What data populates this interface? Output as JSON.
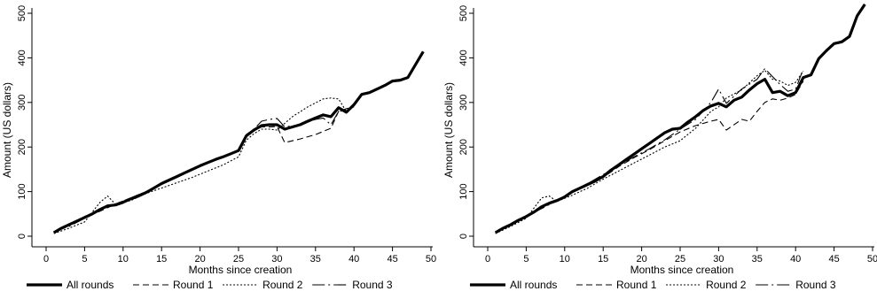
{
  "chart_data": [
    {
      "type": "line",
      "title": "",
      "xlabel": "Months since creation",
      "ylabel": "Amount (US dollars)",
      "xlim": [
        0,
        50
      ],
      "ylim": [
        0,
        500
      ],
      "xticks": [
        0,
        5,
        10,
        15,
        20,
        25,
        30,
        35,
        40,
        45,
        50
      ],
      "yticks": [
        0,
        100,
        200,
        300,
        400,
        500
      ],
      "grid": false,
      "legend_position": "bottom",
      "series": [
        {
          "name": "All rounds",
          "style": "solid-thick",
          "points": [
            [
              1,
              8
            ],
            [
              2,
              18
            ],
            [
              3,
              26
            ],
            [
              4,
              34
            ],
            [
              5,
              42
            ],
            [
              6,
              50
            ],
            [
              7,
              60
            ],
            [
              8,
              68
            ],
            [
              9,
              70
            ],
            [
              10,
              76
            ],
            [
              11,
              84
            ],
            [
              12,
              90
            ],
            [
              13,
              98
            ],
            [
              14,
              108
            ],
            [
              15,
              118
            ],
            [
              16,
              126
            ],
            [
              17,
              134
            ],
            [
              18,
              142
            ],
            [
              19,
              150
            ],
            [
              20,
              158
            ],
            [
              21,
              165
            ],
            [
              22,
              172
            ],
            [
              23,
              178
            ],
            [
              24,
              185
            ],
            [
              25,
              192
            ],
            [
              26,
              225
            ],
            [
              27,
              238
            ],
            [
              28,
              248
            ],
            [
              29,
              250
            ],
            [
              30,
              250
            ],
            [
              31,
              240
            ],
            [
              32,
              245
            ],
            [
              33,
              250
            ],
            [
              34,
              258
            ],
            [
              35,
              265
            ],
            [
              36,
              272
            ],
            [
              37,
              268
            ],
            [
              38,
              288
            ],
            [
              39,
              278
            ],
            [
              40,
              295
            ],
            [
              41,
              318
            ],
            [
              42,
              322
            ],
            [
              43,
              330
            ],
            [
              44,
              338
            ],
            [
              45,
              348
            ],
            [
              46,
              350
            ],
            [
              47,
              356
            ],
            [
              48,
              385
            ],
            [
              49,
              414
            ]
          ]
        },
        {
          "name": "Round 1",
          "style": "dash",
          "points": [
            [
              1,
              8
            ],
            [
              3,
              26
            ],
            [
              5,
              42
            ],
            [
              7,
              56
            ],
            [
              9,
              72
            ],
            [
              11,
              86
            ],
            [
              13,
              100
            ],
            [
              15,
              118
            ],
            [
              17,
              134
            ],
            [
              19,
              150
            ],
            [
              21,
              165
            ],
            [
              23,
              178
            ],
            [
              25,
              192
            ],
            [
              26,
              225
            ],
            [
              27,
              238
            ],
            [
              28,
              245
            ],
            [
              29,
              245
            ],
            [
              30,
              246
            ],
            [
              31,
              210
            ],
            [
              33,
              218
            ],
            [
              35,
              228
            ],
            [
              37,
              242
            ],
            [
              38,
              280
            ],
            [
              39,
              286
            ],
            [
              40,
              290
            ]
          ]
        },
        {
          "name": "Round 2",
          "style": "dot",
          "points": [
            [
              1,
              6
            ],
            [
              3,
              18
            ],
            [
              5,
              32
            ],
            [
              7,
              76
            ],
            [
              8,
              90
            ],
            [
              9,
              72
            ],
            [
              11,
              80
            ],
            [
              13,
              96
            ],
            [
              15,
              108
            ],
            [
              17,
              120
            ],
            [
              19,
              132
            ],
            [
              21,
              146
            ],
            [
              23,
              160
            ],
            [
              25,
              178
            ],
            [
              26,
              215
            ],
            [
              27,
              230
            ],
            [
              28,
              240
            ],
            [
              29,
              240
            ],
            [
              30,
              238
            ],
            [
              32,
              268
            ],
            [
              34,
              290
            ],
            [
              36,
              308
            ],
            [
              37,
              310
            ],
            [
              38,
              308
            ],
            [
              39,
              280
            ]
          ]
        },
        {
          "name": "Round 3",
          "style": "longdash",
          "points": [
            [
              1,
              10
            ],
            [
              3,
              22
            ],
            [
              5,
              40
            ],
            [
              7,
              60
            ],
            [
              9,
              72
            ],
            [
              11,
              86
            ],
            [
              13,
              100
            ],
            [
              15,
              118
            ],
            [
              17,
              134
            ],
            [
              19,
              150
            ],
            [
              21,
              166
            ],
            [
              23,
              180
            ],
            [
              25,
              190
            ],
            [
              26,
              228
            ],
            [
              27,
              240
            ],
            [
              28,
              258
            ],
            [
              29,
              262
            ],
            [
              30,
              264
            ],
            [
              31,
              245
            ],
            [
              33,
              250
            ],
            [
              35,
              262
            ],
            [
              36,
              265
            ],
            [
              37,
              250
            ],
            [
              38,
              280
            ],
            [
              39,
              282
            ]
          ]
        }
      ]
    },
    {
      "type": "line",
      "title": "",
      "xlabel": "Months since creation",
      "ylabel": "Amount (US dollars)",
      "xlim": [
        0,
        50
      ],
      "ylim": [
        0,
        500
      ],
      "xticks": [
        0,
        5,
        10,
        15,
        20,
        25,
        30,
        35,
        40,
        45,
        50
      ],
      "yticks": [
        0,
        100,
        200,
        300,
        400,
        500
      ],
      "grid": false,
      "legend_position": "bottom",
      "series": [
        {
          "name": "All rounds",
          "style": "solid-thick",
          "points": [
            [
              1,
              8
            ],
            [
              2,
              18
            ],
            [
              3,
              26
            ],
            [
              4,
              36
            ],
            [
              5,
              44
            ],
            [
              6,
              54
            ],
            [
              7,
              66
            ],
            [
              8,
              74
            ],
            [
              9,
              80
            ],
            [
              10,
              88
            ],
            [
              11,
              100
            ],
            [
              12,
              108
            ],
            [
              13,
              116
            ],
            [
              14,
              124
            ],
            [
              15,
              134
            ],
            [
              16,
              148
            ],
            [
              17,
              160
            ],
            [
              18,
              172
            ],
            [
              19,
              184
            ],
            [
              20,
              196
            ],
            [
              21,
              208
            ],
            [
              22,
              220
            ],
            [
              23,
              232
            ],
            [
              24,
              240
            ],
            [
              25,
              242
            ],
            [
              26,
              256
            ],
            [
              27,
              268
            ],
            [
              28,
              282
            ],
            [
              29,
              292
            ],
            [
              30,
              298
            ],
            [
              31,
              290
            ],
            [
              32,
              305
            ],
            [
              33,
              312
            ],
            [
              34,
              328
            ],
            [
              35,
              342
            ],
            [
              36,
              352
            ],
            [
              37,
              322
            ],
            [
              38,
              325
            ],
            [
              39,
              315
            ],
            [
              40,
              322
            ],
            [
              41,
              356
            ],
            [
              42,
              362
            ],
            [
              43,
              398
            ],
            [
              44,
              416
            ],
            [
              45,
              432
            ],
            [
              46,
              436
            ],
            [
              47,
              448
            ],
            [
              48,
              494
            ],
            [
              49,
              520
            ]
          ]
        },
        {
          "name": "Round 1",
          "style": "dash",
          "points": [
            [
              1,
              8
            ],
            [
              3,
              26
            ],
            [
              5,
              46
            ],
            [
              7,
              64
            ],
            [
              9,
              80
            ],
            [
              11,
              98
            ],
            [
              13,
              114
            ],
            [
              15,
              132
            ],
            [
              17,
              156
            ],
            [
              19,
              176
            ],
            [
              21,
              194
            ],
            [
              23,
              214
            ],
            [
              25,
              234
            ],
            [
              27,
              248
            ],
            [
              29,
              258
            ],
            [
              30,
              262
            ],
            [
              31,
              238
            ],
            [
              33,
              262
            ],
            [
              34,
              258
            ],
            [
              35,
              280
            ],
            [
              36,
              300
            ],
            [
              37,
              308
            ],
            [
              38,
              305
            ],
            [
              39,
              310
            ],
            [
              40,
              318
            ],
            [
              41,
              348
            ]
          ]
        },
        {
          "name": "Round 2",
          "style": "dot",
          "points": [
            [
              1,
              6
            ],
            [
              3,
              22
            ],
            [
              5,
              40
            ],
            [
              7,
              86
            ],
            [
              8,
              90
            ],
            [
              9,
              78
            ],
            [
              11,
              92
            ],
            [
              13,
              108
            ],
            [
              15,
              128
            ],
            [
              17,
              146
            ],
            [
              19,
              164
            ],
            [
              21,
              182
            ],
            [
              23,
              200
            ],
            [
              25,
              214
            ],
            [
              27,
              242
            ],
            [
              29,
              280
            ],
            [
              30,
              290
            ],
            [
              31,
              310
            ],
            [
              33,
              328
            ],
            [
              35,
              360
            ],
            [
              36,
              372
            ],
            [
              37,
              352
            ],
            [
              38,
              348
            ],
            [
              39,
              338
            ],
            [
              40,
              345
            ],
            [
              41,
              370
            ]
          ]
        },
        {
          "name": "Round 3",
          "style": "longdash",
          "points": [
            [
              1,
              10
            ],
            [
              3,
              24
            ],
            [
              5,
              44
            ],
            [
              7,
              62
            ],
            [
              9,
              80
            ],
            [
              11,
              98
            ],
            [
              13,
              118
            ],
            [
              15,
              138
            ],
            [
              17,
              158
            ],
            [
              19,
              178
            ],
            [
              21,
              196
            ],
            [
              23,
              216
            ],
            [
              25,
              240
            ],
            [
              27,
              262
            ],
            [
              29,
              300
            ],
            [
              30,
              330
            ],
            [
              31,
              298
            ],
            [
              33,
              330
            ],
            [
              35,
              352
            ],
            [
              36,
              376
            ],
            [
              37,
              358
            ],
            [
              38,
              340
            ],
            [
              39,
              325
            ],
            [
              40,
              330
            ],
            [
              41,
              375
            ]
          ]
        }
      ]
    }
  ]
}
